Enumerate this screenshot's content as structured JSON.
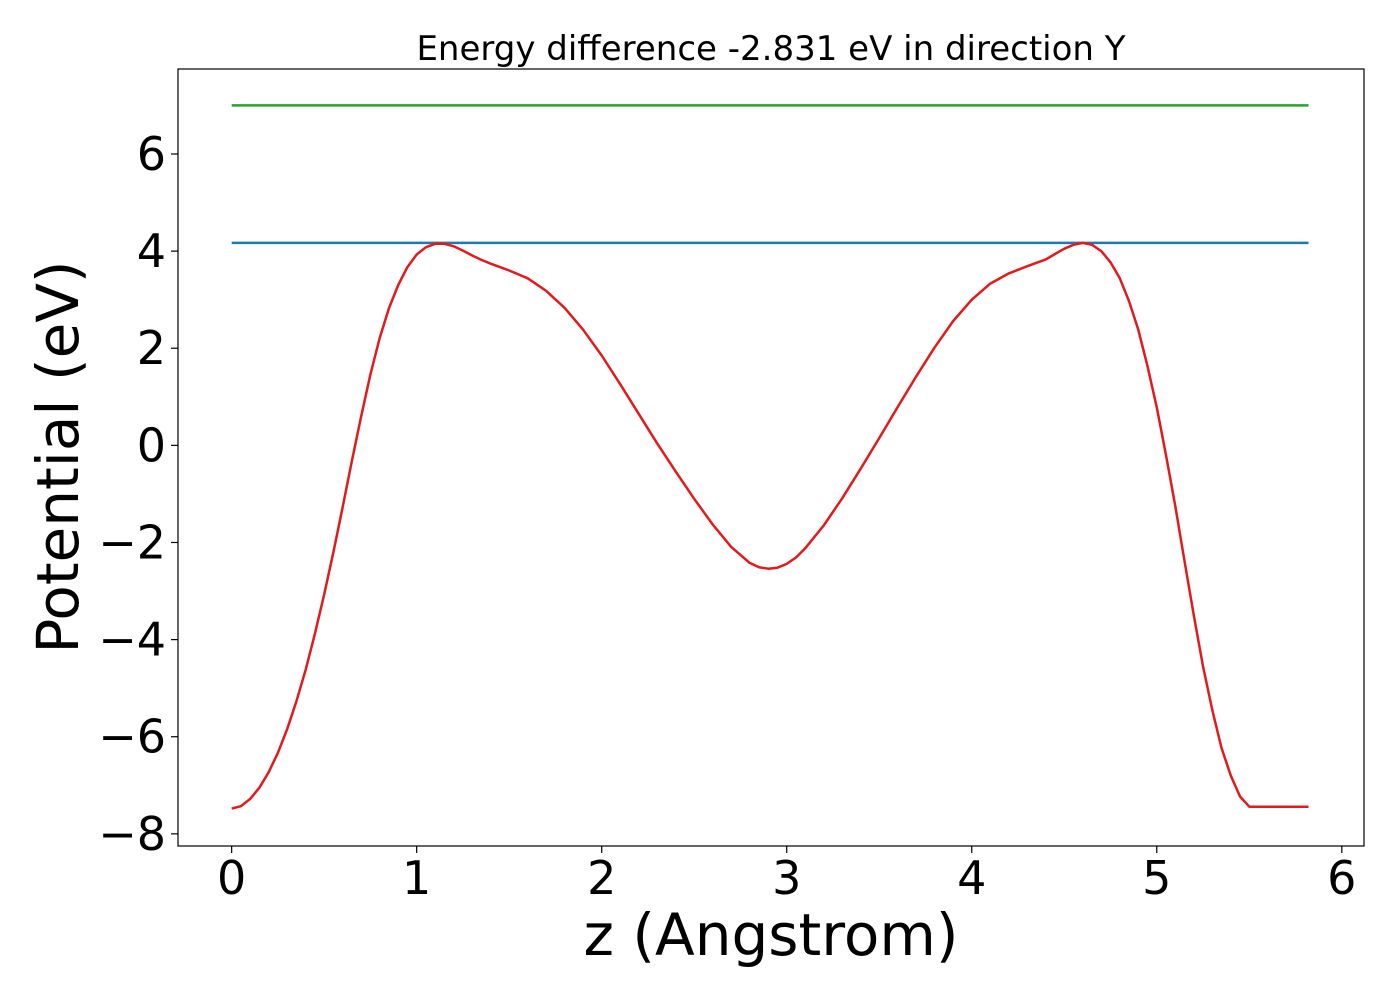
{
  "chart_data": {
    "type": "line",
    "title": "Energy difference -2.831 eV in direction Y",
    "xlabel": "z (Angstrom)",
    "ylabel": "Potential (eV)",
    "xlim": [
      -0.29,
      6.12
    ],
    "ylim": [
      -8.25,
      7.75
    ],
    "xticks": [
      0,
      1,
      2,
      3,
      4,
      5,
      6
    ],
    "yticks": [
      -8,
      -6,
      -4,
      -2,
      0,
      2,
      4,
      6
    ],
    "xtick_labels": [
      "0",
      "1",
      "2",
      "3",
      "4",
      "5",
      "6"
    ],
    "ytick_labels": [
      "−8",
      "−6",
      "−4",
      "−2",
      "0",
      "2",
      "4",
      "6"
    ],
    "grid": false,
    "series": [
      {
        "color": "#2ca02c",
        "x": [
          0.0,
          5.82
        ],
        "y": [
          7.0,
          7.0
        ]
      },
      {
        "color": "#1f77b4",
        "x": [
          0.0,
          5.82
        ],
        "y": [
          4.17,
          4.17
        ]
      },
      {
        "color": "#e31a1c",
        "x": [
          0.0,
          0.05,
          0.1,
          0.15,
          0.2,
          0.25,
          0.3,
          0.35,
          0.4,
          0.45,
          0.5,
          0.55,
          0.6,
          0.65,
          0.7,
          0.75,
          0.8,
          0.85,
          0.9,
          0.95,
          1.0,
          1.05,
          1.1,
          1.15,
          1.2,
          1.25,
          1.3,
          1.35,
          1.4,
          1.45,
          1.5,
          1.6,
          1.7,
          1.8,
          1.9,
          2.0,
          2.1,
          2.2,
          2.3,
          2.4,
          2.5,
          2.6,
          2.7,
          2.8,
          2.85,
          2.9,
          2.95,
          3.0,
          3.05,
          3.1,
          3.2,
          3.3,
          3.4,
          3.5,
          3.6,
          3.7,
          3.8,
          3.9,
          4.0,
          4.1,
          4.2,
          4.3,
          4.4,
          4.45,
          4.5,
          4.55,
          4.6,
          4.65,
          4.7,
          4.75,
          4.8,
          4.85,
          4.9,
          4.95,
          5.0,
          5.05,
          5.1,
          5.15,
          5.2,
          5.25,
          5.3,
          5.35,
          5.4,
          5.45,
          5.5,
          5.55,
          5.6,
          5.65,
          5.7,
          5.75,
          5.82
        ],
        "y": [
          -7.48,
          -7.43,
          -7.28,
          -7.05,
          -6.73,
          -6.33,
          -5.84,
          -5.27,
          -4.62,
          -3.88,
          -3.07,
          -2.2,
          -1.27,
          -0.32,
          0.6,
          1.46,
          2.21,
          2.82,
          3.3,
          3.67,
          3.93,
          4.08,
          4.15,
          4.15,
          4.1,
          4.01,
          3.91,
          3.82,
          3.74,
          3.67,
          3.6,
          3.44,
          3.18,
          2.83,
          2.38,
          1.85,
          1.26,
          0.65,
          0.04,
          -0.54,
          -1.1,
          -1.63,
          -2.09,
          -2.42,
          -2.51,
          -2.54,
          -2.52,
          -2.44,
          -2.31,
          -2.12,
          -1.65,
          -1.09,
          -0.48,
          0.15,
          0.79,
          1.42,
          2.02,
          2.56,
          3.0,
          3.33,
          3.54,
          3.69,
          3.83,
          3.94,
          4.05,
          4.13,
          4.17,
          4.13,
          4.0,
          3.77,
          3.44,
          2.97,
          2.38,
          1.63,
          0.78,
          -0.2,
          -1.25,
          -2.38,
          -3.5,
          -4.55,
          -5.45,
          -6.23,
          -6.8,
          -7.23,
          -7.44,
          -7.44,
          -7.44,
          -7.44,
          -7.44,
          -7.44,
          -7.44
        ]
      }
    ]
  }
}
